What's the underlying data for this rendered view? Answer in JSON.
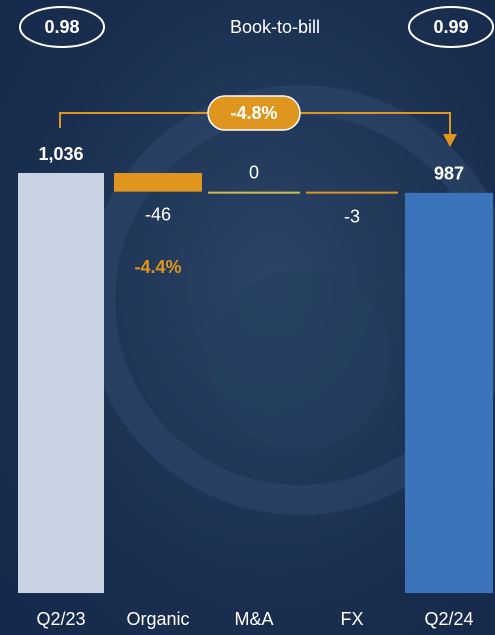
{
  "chart_data": {
    "type": "waterfall",
    "categories": [
      "Q2/23",
      "Organic",
      "M&A",
      "FX",
      "Q2/24"
    ],
    "values": [
      1036,
      -46,
      0,
      -3,
      987
    ],
    "value_labels": [
      "1,036",
      "-46",
      "0",
      "-3",
      "987"
    ],
    "totals": [
      true,
      false,
      false,
      false,
      true
    ],
    "colors": [
      "#c9d3e4",
      "#e0961e",
      "#c9c24a",
      "#e0961e",
      "#3b74bb"
    ],
    "annotations": {
      "book_to_bill_label": "Book-to-bill",
      "book_to_bill_start": "0.98",
      "book_to_bill_end": "0.99",
      "total_change": "-4.8%",
      "organic_change": "-4.4%"
    }
  }
}
